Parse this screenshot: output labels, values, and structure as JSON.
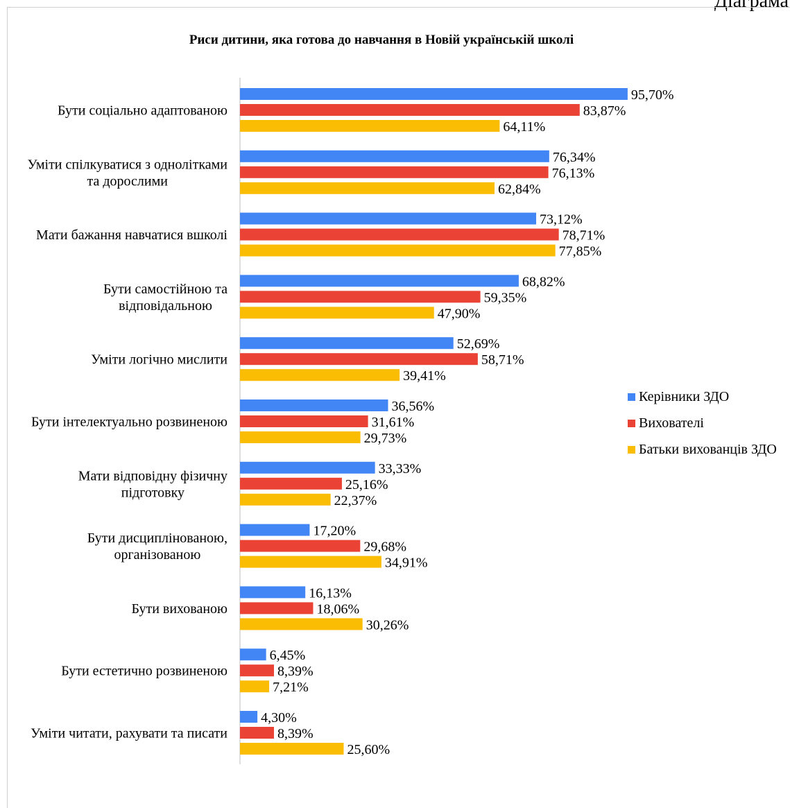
{
  "corner_label": "Діаграма",
  "chart_data": {
    "type": "bar",
    "orientation": "horizontal",
    "title": "Риси дитини, яка готова до навчання в Новій українській школі",
    "categories": [
      [
        "Бути соціально адаптованою"
      ],
      [
        "Уміти спілкуватися з однолітками",
        "та дорослими"
      ],
      [
        "Мати бажання навчатися вшколі"
      ],
      [
        "Бути самостійною та",
        "відповідальною"
      ],
      [
        "Уміти логічно мислити"
      ],
      [
        "Бути інтелектуально розвиненою"
      ],
      [
        "Мати відповідну фізичну",
        "підготовку"
      ],
      [
        "Бути дисциплінованою,",
        "організованою"
      ],
      [
        "Бути вихованою"
      ],
      [
        "Бути естетично розвиненою"
      ],
      [
        "Уміти читати, рахувати та писати"
      ]
    ],
    "series": [
      {
        "name": "Керівники ЗДО",
        "color": "#4285f4",
        "values": [
          95.7,
          76.34,
          73.12,
          68.82,
          52.69,
          36.56,
          33.33,
          17.2,
          16.13,
          6.45,
          4.3
        ],
        "labels": [
          "95,70%",
          "76,34%",
          "73,12%",
          "68,82%",
          "52,69%",
          "36,56%",
          "33,33%",
          "17,20%",
          "16,13%",
          "6,45%",
          "4,30%"
        ]
      },
      {
        "name": "Вихователі",
        "color": "#ea4335",
        "values": [
          83.87,
          76.13,
          78.71,
          59.35,
          58.71,
          31.61,
          25.16,
          29.68,
          18.06,
          8.39,
          8.39
        ],
        "labels": [
          "83,87%",
          "76,13%",
          "78,71%",
          "59,35%",
          "58,71%",
          "31,61%",
          "25,16%",
          "29,68%",
          "18,06%",
          "8,39%",
          "8,39%"
        ]
      },
      {
        "name": "Батьки вихованців ЗДО",
        "color": "#fbbc04",
        "values": [
          64.11,
          62.84,
          77.85,
          47.9,
          39.41,
          29.73,
          22.37,
          34.91,
          30.26,
          7.21,
          25.6
        ],
        "labels": [
          "64,11%",
          "62,84%",
          "77,85%",
          "47,90%",
          "39,41%",
          "29,73%",
          "22,37%",
          "34,91%",
          "30,26%",
          "7,21%",
          "25,60%"
        ]
      }
    ],
    "xlim": [
      0,
      100
    ],
    "grid": false,
    "legend_position": "right"
  }
}
